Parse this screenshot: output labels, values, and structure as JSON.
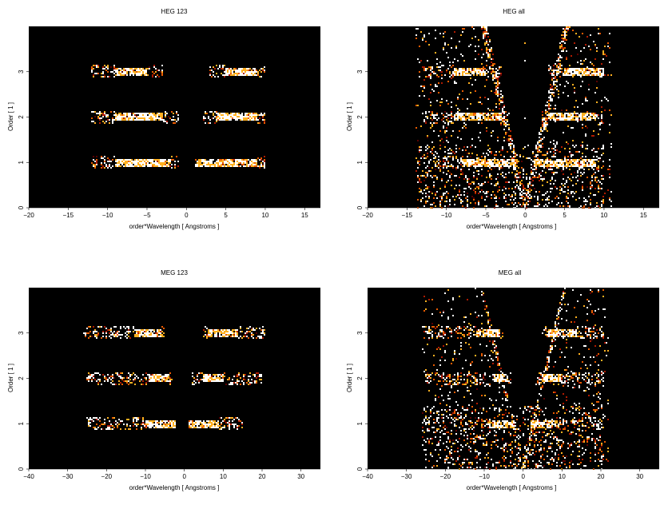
{
  "chart_data": [
    {
      "type": "heatmap",
      "title": "HEG 123",
      "xlabel": "order*Wavelength [ Angstroms ]",
      "ylabel": "Order [ 1 ]",
      "xlim": [
        -20,
        17
      ],
      "ylim": [
        0,
        4
      ],
      "xticks": [
        -20,
        -15,
        -10,
        -5,
        0,
        5,
        10,
        15
      ],
      "yticks": [
        0,
        1,
        2,
        3
      ],
      "grid": false,
      "colormap": [
        "#000000",
        "#5a0000",
        "#b01a00",
        "#e85a00",
        "#ffb020",
        "#ffffff"
      ],
      "bands": [
        {
          "order": 1,
          "x_ranges": [
            [
              -12,
              -1
            ],
            [
              1,
              10
            ]
          ],
          "core_ranges": [
            [
              -9,
              -2
            ],
            [
              1.2,
              9
            ]
          ]
        },
        {
          "order": 2,
          "x_ranges": [
            [
              -12,
              -1
            ],
            [
              2,
              10
            ]
          ],
          "core_ranges": [
            [
              -9,
              -3
            ],
            [
              4,
              9
            ]
          ]
        },
        {
          "order": 3,
          "x_ranges": [
            [
              -12,
              -3
            ],
            [
              3,
              10
            ]
          ],
          "core_ranges": [
            [
              -9,
              -5
            ],
            [
              5,
              9
            ]
          ]
        }
      ]
    },
    {
      "type": "heatmap",
      "title": "HEG all",
      "xlabel": "order*Wavelength [ Angstroms ]",
      "ylabel": "Order [ 1 ]",
      "xlim": [
        -20,
        17
      ],
      "ylim": [
        0,
        4
      ],
      "xticks": [
        -20,
        -15,
        -10,
        -5,
        0,
        5,
        10,
        15
      ],
      "yticks": [
        0,
        1,
        2,
        3
      ],
      "grid": false,
      "colormap": [
        "#000000",
        "#5a0000",
        "#b01a00",
        "#e85a00",
        "#ffb020",
        "#ffffff"
      ],
      "bands": [
        {
          "order": 1,
          "x_ranges": [
            [
              -13,
              -1
            ],
            [
              1,
              10
            ]
          ],
          "core_ranges": [
            [
              -8,
              -1
            ],
            [
              1,
              9
            ]
          ]
        },
        {
          "order": 2,
          "x_ranges": [
            [
              -13,
              -2
            ],
            [
              2,
              10
            ]
          ],
          "core_ranges": [
            [
              -9,
              -3
            ],
            [
              3,
              9
            ]
          ]
        },
        {
          "order": 3,
          "x_ranges": [
            [
              -13,
              -3
            ],
            [
              3,
              10
            ]
          ],
          "core_ranges": [
            [
              -9,
              -5
            ],
            [
              5,
              10
            ]
          ]
        }
      ]
    },
    {
      "type": "heatmap",
      "title": "MEG 123",
      "xlabel": "order*Wavelength [ Angstroms ]",
      "ylabel": "Order [ 1 ]",
      "xlim": [
        -40,
        35
      ],
      "ylim": [
        0,
        4
      ],
      "xticks": [
        -40,
        -30,
        -20,
        -10,
        0,
        10,
        20,
        30
      ],
      "yticks": [
        0,
        1,
        2,
        3
      ],
      "grid": false,
      "colormap": [
        "#000000",
        "#5a0000",
        "#b01a00",
        "#e85a00",
        "#ffb020",
        "#ffffff"
      ],
      "bands": [
        {
          "order": 1,
          "x_ranges": [
            [
              -25,
              -2
            ],
            [
              1,
              15
            ]
          ],
          "core_ranges": [
            [
              -10,
              -2
            ],
            [
              1,
              9
            ]
          ]
        },
        {
          "order": 2,
          "x_ranges": [
            [
              -25,
              -3
            ],
            [
              2,
              20
            ]
          ],
          "core_ranges": [
            [
              -9,
              -4
            ],
            [
              5,
              10
            ]
          ]
        },
        {
          "order": 3,
          "x_ranges": [
            [
              -26,
              -5
            ],
            [
              5,
              21
            ]
          ],
          "core_ranges": [
            [
              -13,
              -6
            ],
            [
              6,
              14
            ]
          ]
        }
      ]
    },
    {
      "type": "heatmap",
      "title": "MEG all",
      "xlabel": "order*Wavelength [ Angstroms ]",
      "ylabel": "Order [ 1 ]",
      "xlim": [
        -40,
        35
      ],
      "ylim": [
        0,
        4
      ],
      "xticks": [
        -40,
        -30,
        -20,
        -10,
        0,
        10,
        20,
        30
      ],
      "yticks": [
        0,
        1,
        2,
        3
      ],
      "grid": false,
      "colormap": [
        "#000000",
        "#5a0000",
        "#b01a00",
        "#e85a00",
        "#ffb020",
        "#ffffff"
      ],
      "bands": [
        {
          "order": 1,
          "x_ranges": [
            [
              -25,
              -2
            ],
            [
              2,
              21
            ]
          ],
          "core_ranges": [
            [
              -9,
              -2
            ],
            [
              2,
              9
            ]
          ]
        },
        {
          "order": 2,
          "x_ranges": [
            [
              -25,
              -3
            ],
            [
              3,
              21
            ]
          ],
          "core_ranges": [
            [
              -8,
              -4
            ],
            [
              5,
              10
            ]
          ]
        },
        {
          "order": 3,
          "x_ranges": [
            [
              -26,
              -5
            ],
            [
              5,
              21
            ]
          ],
          "core_ranges": [
            [
              -12,
              -6
            ],
            [
              6,
              14
            ]
          ]
        }
      ]
    }
  ]
}
